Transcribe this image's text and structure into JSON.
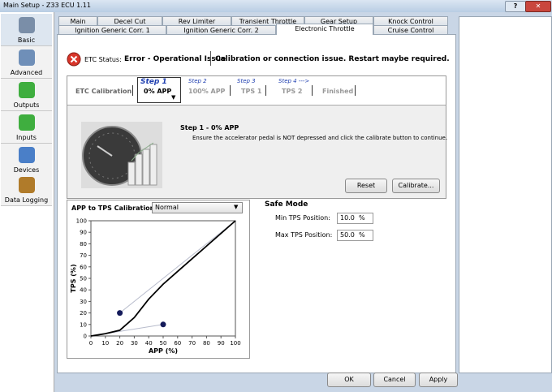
{
  "window": {
    "title": "Main Setup - Z33 ECU 1.11"
  },
  "sidebar": [
    {
      "label": "Basic"
    },
    {
      "label": "Advanced"
    },
    {
      "label": "Outputs"
    },
    {
      "label": "Inputs"
    },
    {
      "label": "Devices"
    },
    {
      "label": "Data Logging"
    }
  ],
  "tabs": {
    "row1": [
      "Main",
      "Decel Cut",
      "Rev Limiter",
      "Transient Throttle",
      "Gear Setup",
      "Knock Control"
    ],
    "row2": [
      "Ignition Generic Corr. 1",
      "Ignition Generic Corr. 2",
      "Electronic Throttle",
      "Cruise Control"
    ]
  },
  "status": {
    "label": "ETC Status:",
    "state": "Error - Operational Issue",
    "message": "Calibration or connection issue. Restart maybe required."
  },
  "steps": {
    "title": "ETC Calibration",
    "items": [
      {
        "step": "Step 1",
        "label": "0% APP"
      },
      {
        "step": "Step 2",
        "label": "100% APP"
      },
      {
        "step": "Step 3",
        "label": "TPS 1"
      },
      {
        "step": "Step 4 --->",
        "label": "TPS 2"
      },
      {
        "label": "Finished"
      }
    ]
  },
  "step_panel": {
    "heading": "Step 1 - 0% APP",
    "description": "Ensure the accelerator pedal is NOT depressed and click the calibrate button to continue.",
    "buttons": [
      "Reset",
      "Calibrate..."
    ]
  },
  "calibration_chart": {
    "type": "line",
    "title": "APP to TPS Calibration",
    "mode": "Normal",
    "x_label": "APP (%)",
    "y_label": "TPS (%)",
    "xlim": [
      0,
      100
    ],
    "ylim": [
      0,
      100
    ],
    "xticks": [
      0,
      10,
      20,
      30,
      40,
      50,
      60,
      70,
      80,
      90,
      100
    ],
    "yticks": [
      0,
      10,
      20,
      30,
      40,
      50,
      60,
      70,
      80,
      90,
      100
    ],
    "curve": {
      "x": [
        0,
        10,
        20,
        30,
        40,
        50,
        60,
        70,
        80,
        90,
        100
      ],
      "y": [
        0,
        2,
        5,
        16,
        32,
        45,
        56,
        67,
        78,
        89,
        100
      ]
    },
    "control_points": {
      "x": [
        20,
        50
      ],
      "y": [
        20,
        10
      ]
    },
    "handles": [
      {
        "x": [
          0,
          50
        ],
        "y": [
          0,
          10
        ]
      },
      {
        "x": [
          20,
          100
        ],
        "y": [
          20,
          100
        ]
      }
    ]
  },
  "safe_mode": {
    "title": "Safe Mode",
    "fields": [
      {
        "label": "Min TPS Position:",
        "value": "10.0",
        "unit": "%"
      },
      {
        "label": "Max TPS Position:",
        "value": "50.0",
        "unit": "%"
      }
    ]
  },
  "footer_buttons": [
    "OK",
    "Cancel",
    "Apply"
  ]
}
